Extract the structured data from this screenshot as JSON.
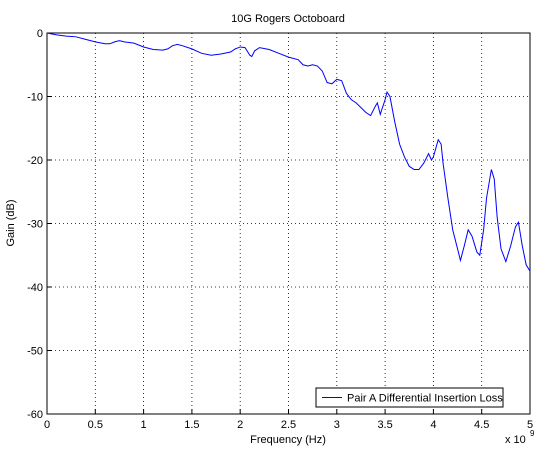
{
  "chart_data": {
    "type": "line",
    "title": "10G Rogers Octoboard",
    "xlabel": "Frequency (Hz)",
    "ylabel": "Gain (dB)",
    "x_multiplier": {
      "base": "x 10",
      "exponent": "9"
    },
    "x": [
      0,
      0.1,
      0.2,
      0.3,
      0.4,
      0.5,
      0.6,
      0.65,
      0.7,
      0.75,
      0.8,
      0.9,
      1.0,
      1.1,
      1.2,
      1.25,
      1.3,
      1.35,
      1.4,
      1.5,
      1.6,
      1.7,
      1.8,
      1.9,
      1.95,
      2.0,
      2.05,
      2.1,
      2.12,
      2.15,
      2.2,
      2.3,
      2.4,
      2.5,
      2.6,
      2.65,
      2.7,
      2.75,
      2.8,
      2.85,
      2.9,
      2.95,
      3.0,
      3.05,
      3.1,
      3.15,
      3.2,
      3.3,
      3.35,
      3.4,
      3.42,
      3.45,
      3.5,
      3.52,
      3.55,
      3.6,
      3.65,
      3.7,
      3.75,
      3.8,
      3.85,
      3.9,
      3.95,
      3.98,
      4.0,
      4.05,
      4.08,
      4.1,
      4.15,
      4.2,
      4.25,
      4.28,
      4.32,
      4.36,
      4.4,
      4.45,
      4.48,
      4.52,
      4.55,
      4.6,
      4.63,
      4.66,
      4.7,
      4.75,
      4.8,
      4.85,
      4.88,
      4.92,
      4.96,
      5.0
    ],
    "series": [
      {
        "name": "Pair A Differential Insertion Loss",
        "color": "#0000ff",
        "values": [
          0,
          -0.3,
          -0.5,
          -0.6,
          -1.0,
          -1.4,
          -1.7,
          -1.7,
          -1.4,
          -1.2,
          -1.4,
          -1.6,
          -2.2,
          -2.6,
          -2.7,
          -2.5,
          -2.0,
          -1.8,
          -2.0,
          -2.5,
          -3.2,
          -3.5,
          -3.3,
          -3.0,
          -2.5,
          -2.2,
          -2.3,
          -3.5,
          -3.7,
          -2.8,
          -2.3,
          -2.6,
          -3.2,
          -3.8,
          -4.2,
          -5.0,
          -5.2,
          -5.0,
          -5.2,
          -6.0,
          -7.8,
          -8.0,
          -7.3,
          -7.5,
          -9.5,
          -10.5,
          -11.0,
          -12.5,
          -13.0,
          -11.5,
          -11.0,
          -12.8,
          -10.5,
          -9.3,
          -10.0,
          -14.0,
          -17.5,
          -19.5,
          -21.0,
          -21.5,
          -21.5,
          -20.5,
          -19.0,
          -20.0,
          -19.5,
          -16.8,
          -17.5,
          -20.5,
          -26.0,
          -31.0,
          -34.0,
          -35.8,
          -33.5,
          -31.0,
          -32.0,
          -34.5,
          -35.0,
          -31.0,
          -26.0,
          -21.5,
          -23.0,
          -29.0,
          -34.0,
          -36.0,
          -33.5,
          -30.5,
          -29.8,
          -33.5,
          -36.5,
          -37.5
        ]
      }
    ],
    "xlim": [
      0,
      5
    ],
    "xticks": [
      0,
      0.5,
      1,
      1.5,
      2,
      2.5,
      3,
      3.5,
      4,
      4.5,
      5
    ],
    "ylim": [
      -60,
      0
    ],
    "yticks": [
      -60,
      -50,
      -40,
      -30,
      -20,
      -10,
      0
    ],
    "grid": true,
    "legend": "lower right"
  }
}
